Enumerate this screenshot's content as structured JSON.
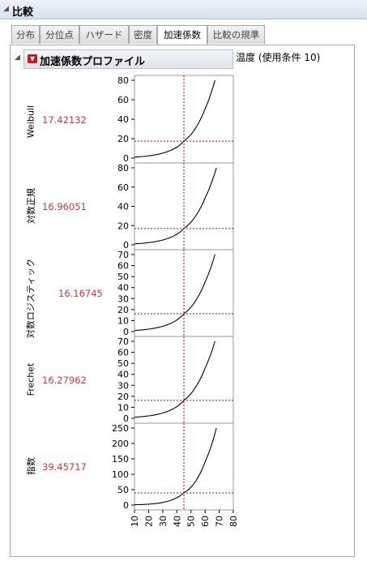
{
  "window": {
    "title": "比較"
  },
  "tabs": [
    {
      "label": "分布",
      "active": false
    },
    {
      "label": "分位点",
      "active": false
    },
    {
      "label": "ハザード",
      "active": false
    },
    {
      "label": "密度",
      "active": false
    },
    {
      "label": "加速係数",
      "active": true
    },
    {
      "label": "比較の規準",
      "active": false
    }
  ],
  "profiler": {
    "title": "加速係数プロファイル",
    "x_header": "温度 (使用条件 10)",
    "current_x": "45",
    "x_label": "温度",
    "colors": {
      "curve": "#000000",
      "crosshair": "#c00000",
      "value": "#d33333"
    }
  },
  "chart_data": {
    "type": "line",
    "xlim": [
      10,
      80
    ],
    "xticks": [
      10,
      20,
      30,
      40,
      50,
      60,
      70,
      80
    ],
    "current_x": 45,
    "panels": [
      {
        "name": "Weibull",
        "value_label": "17.42132",
        "value": 17.42132,
        "ylim": [
          0,
          80
        ],
        "yticks": [
          0,
          20,
          40,
          60,
          80
        ],
        "x": [
          10,
          20,
          30,
          40,
          45,
          50,
          60,
          67
        ],
        "y": [
          1.0,
          2.3,
          5.1,
          11.2,
          17.42,
          24.2,
          50.5,
          80.0
        ]
      },
      {
        "name": "対数正規",
        "value_label": "16.96051",
        "value": 16.96051,
        "ylim": [
          0,
          80
        ],
        "yticks": [
          0,
          20,
          40,
          60,
          80
        ],
        "x": [
          10,
          20,
          30,
          40,
          45,
          50,
          60,
          68
        ],
        "y": [
          1.0,
          2.3,
          5.0,
          11.0,
          16.96,
          23.5,
          48.5,
          80.0
        ]
      },
      {
        "name": "対数ロジスティック",
        "value_label": "16.16745",
        "value": 16.16745,
        "ylim": [
          0,
          70
        ],
        "yticks": [
          0,
          10,
          20,
          30,
          40,
          50,
          60,
          70
        ],
        "x": [
          10,
          20,
          30,
          40,
          45,
          50,
          60,
          67
        ],
        "y": [
          1.0,
          2.2,
          4.8,
          10.5,
          16.17,
          22.2,
          45.0,
          70.0
        ]
      },
      {
        "name": "Frechet",
        "value_label": "16.27962",
        "value": 16.27962,
        "ylim": [
          0,
          70
        ],
        "yticks": [
          0,
          10,
          20,
          30,
          40,
          50,
          60,
          70
        ],
        "x": [
          10,
          20,
          30,
          40,
          45,
          50,
          60,
          67
        ],
        "y": [
          1.0,
          2.2,
          4.8,
          10.6,
          16.28,
          22.4,
          45.5,
          70.0
        ]
      },
      {
        "name": "指数",
        "value_label": "39.45717",
        "value": 39.45717,
        "ylim": [
          0,
          250
        ],
        "yticks": [
          0,
          50,
          100,
          150,
          200,
          250
        ],
        "x": [
          10,
          20,
          30,
          40,
          45,
          50,
          60,
          68
        ],
        "y": [
          1.0,
          2.9,
          8.5,
          24.0,
          39.46,
          58.0,
          140.0,
          250.0
        ]
      }
    ]
  }
}
